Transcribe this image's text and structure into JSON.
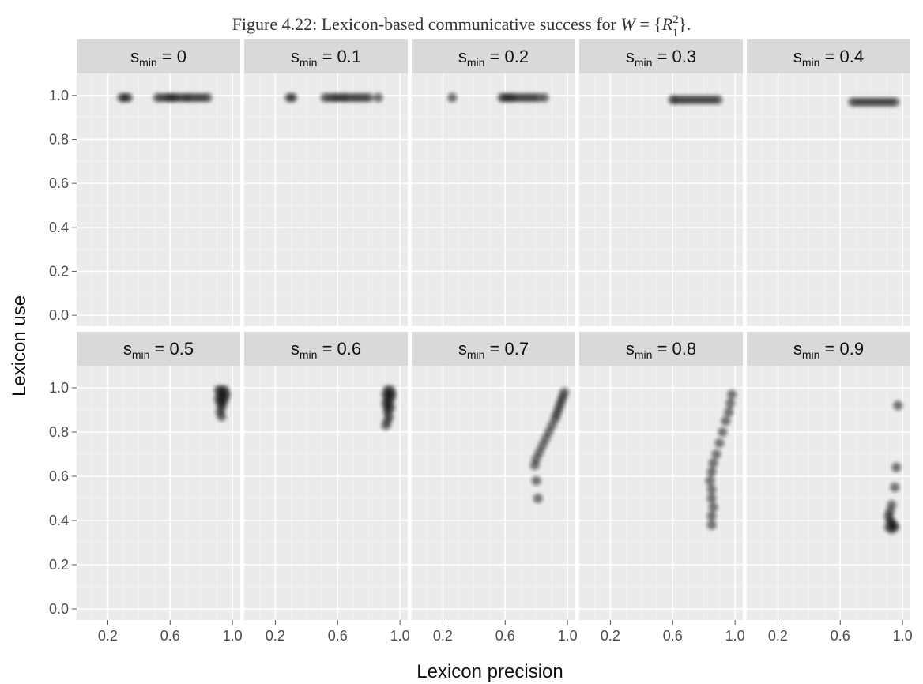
{
  "caption": {
    "prefix": "Figure 4.22: Lexicon-based communicative success for ",
    "var": "W",
    "eq": " = {",
    "sym": "R",
    "sup": "2",
    "sub": "1",
    "close": "}."
  },
  "chart_data": {
    "type": "scatter",
    "xlabel": "Lexicon precision",
    "ylabel": "Lexicon use",
    "xlim": [
      0.0,
      1.05
    ],
    "ylim": [
      -0.05,
      1.1
    ],
    "x_ticks": [
      0.2,
      0.6,
      1.0
    ],
    "x_tick_labels": [
      "0.2",
      "0.6",
      "1.0"
    ],
    "y_ticks": [
      0.0,
      0.2,
      0.4,
      0.6,
      0.8,
      1.0
    ],
    "y_tick_labels": [
      "0.0",
      "0.2",
      "0.4",
      "0.6",
      "0.8",
      "1.0"
    ],
    "grid": true,
    "facet_rows": 2,
    "facet_cols": 5,
    "facet_var": "s",
    "facet_var_subscript": "min",
    "panels": [
      {
        "s_min": "0",
        "points": [
          [
            0.29,
            0.99
          ],
          [
            0.31,
            0.99
          ],
          [
            0.33,
            0.99
          ],
          [
            0.52,
            0.99
          ],
          [
            0.55,
            0.99
          ],
          [
            0.58,
            0.99
          ],
          [
            0.6,
            0.99
          ],
          [
            0.62,
            0.99
          ],
          [
            0.64,
            0.99
          ],
          [
            0.67,
            0.99
          ],
          [
            0.7,
            0.99
          ],
          [
            0.72,
            0.99
          ],
          [
            0.75,
            0.99
          ],
          [
            0.78,
            0.99
          ],
          [
            0.81,
            0.99
          ],
          [
            0.84,
            0.99
          ]
        ]
      },
      {
        "s_min": "0.1",
        "points": [
          [
            0.29,
            0.99
          ],
          [
            0.31,
            0.99
          ],
          [
            0.52,
            0.99
          ],
          [
            0.55,
            0.99
          ],
          [
            0.58,
            0.99
          ],
          [
            0.6,
            0.99
          ],
          [
            0.63,
            0.99
          ],
          [
            0.65,
            0.99
          ],
          [
            0.68,
            0.99
          ],
          [
            0.71,
            0.99
          ],
          [
            0.74,
            0.99
          ],
          [
            0.77,
            0.99
          ],
          [
            0.8,
            0.99
          ],
          [
            0.86,
            0.99
          ]
        ]
      },
      {
        "s_min": "0.2",
        "points": [
          [
            0.26,
            0.99
          ],
          [
            0.58,
            0.99
          ],
          [
            0.6,
            0.99
          ],
          [
            0.62,
            0.99
          ],
          [
            0.64,
            0.99
          ],
          [
            0.66,
            0.99
          ],
          [
            0.69,
            0.99
          ],
          [
            0.72,
            0.99
          ],
          [
            0.75,
            0.99
          ],
          [
            0.78,
            0.99
          ],
          [
            0.81,
            0.99
          ],
          [
            0.85,
            0.99
          ]
        ]
      },
      {
        "s_min": "0.3",
        "points": [
          [
            0.6,
            0.98
          ],
          [
            0.62,
            0.98
          ],
          [
            0.65,
            0.98
          ],
          [
            0.68,
            0.98
          ],
          [
            0.71,
            0.98
          ],
          [
            0.74,
            0.98
          ],
          [
            0.77,
            0.98
          ],
          [
            0.8,
            0.98
          ],
          [
            0.83,
            0.98
          ],
          [
            0.86,
            0.98
          ],
          [
            0.89,
            0.98
          ]
        ]
      },
      {
        "s_min": "0.4",
        "points": [
          [
            0.68,
            0.97
          ],
          [
            0.71,
            0.97
          ],
          [
            0.74,
            0.97
          ],
          [
            0.77,
            0.97
          ],
          [
            0.8,
            0.97
          ],
          [
            0.83,
            0.97
          ],
          [
            0.86,
            0.97
          ],
          [
            0.89,
            0.97
          ],
          [
            0.92,
            0.97
          ],
          [
            0.95,
            0.97
          ]
        ]
      },
      {
        "s_min": "0.5",
        "points": [
          [
            0.91,
            0.99
          ],
          [
            0.93,
            0.99
          ],
          [
            0.95,
            0.99
          ],
          [
            0.92,
            0.97
          ],
          [
            0.94,
            0.97
          ],
          [
            0.96,
            0.97
          ],
          [
            0.91,
            0.95
          ],
          [
            0.93,
            0.95
          ],
          [
            0.95,
            0.95
          ],
          [
            0.92,
            0.93
          ],
          [
            0.94,
            0.93
          ],
          [
            0.93,
            0.91
          ],
          [
            0.92,
            0.89
          ],
          [
            0.93,
            0.87
          ]
        ]
      },
      {
        "s_min": "0.6",
        "points": [
          [
            0.92,
            0.99
          ],
          [
            0.94,
            0.99
          ],
          [
            0.91,
            0.97
          ],
          [
            0.93,
            0.97
          ],
          [
            0.95,
            0.97
          ],
          [
            0.92,
            0.95
          ],
          [
            0.94,
            0.95
          ],
          [
            0.91,
            0.93
          ],
          [
            0.93,
            0.93
          ],
          [
            0.92,
            0.91
          ],
          [
            0.94,
            0.91
          ],
          [
            0.92,
            0.89
          ],
          [
            0.93,
            0.87
          ],
          [
            0.92,
            0.85
          ],
          [
            0.91,
            0.83
          ]
        ]
      },
      {
        "s_min": "0.7",
        "points": [
          [
            0.98,
            0.98
          ],
          [
            0.97,
            0.96
          ],
          [
            0.96,
            0.94
          ],
          [
            0.95,
            0.92
          ],
          [
            0.94,
            0.9
          ],
          [
            0.93,
            0.88
          ],
          [
            0.92,
            0.86
          ],
          [
            0.9,
            0.83
          ],
          [
            0.88,
            0.8
          ],
          [
            0.86,
            0.77
          ],
          [
            0.84,
            0.74
          ],
          [
            0.82,
            0.71
          ],
          [
            0.8,
            0.68
          ],
          [
            0.79,
            0.65
          ],
          [
            0.8,
            0.58
          ],
          [
            0.81,
            0.5
          ]
        ]
      },
      {
        "s_min": "0.8",
        "points": [
          [
            0.98,
            0.97
          ],
          [
            0.97,
            0.93
          ],
          [
            0.96,
            0.89
          ],
          [
            0.94,
            0.85
          ],
          [
            0.92,
            0.8
          ],
          [
            0.9,
            0.75
          ],
          [
            0.88,
            0.7
          ],
          [
            0.86,
            0.66
          ],
          [
            0.85,
            0.62
          ],
          [
            0.84,
            0.58
          ],
          [
            0.85,
            0.54
          ],
          [
            0.85,
            0.5
          ],
          [
            0.86,
            0.46
          ],
          [
            0.85,
            0.42
          ],
          [
            0.85,
            0.38
          ]
        ]
      },
      {
        "s_min": "0.9",
        "points": [
          [
            0.97,
            0.92
          ],
          [
            0.96,
            0.64
          ],
          [
            0.95,
            0.55
          ],
          [
            0.93,
            0.47
          ],
          [
            0.92,
            0.44
          ],
          [
            0.91,
            0.42
          ],
          [
            0.92,
            0.4
          ],
          [
            0.93,
            0.39
          ],
          [
            0.94,
            0.38
          ],
          [
            0.91,
            0.37
          ],
          [
            0.93,
            0.36
          ],
          [
            0.95,
            0.37
          ]
        ]
      }
    ]
  }
}
